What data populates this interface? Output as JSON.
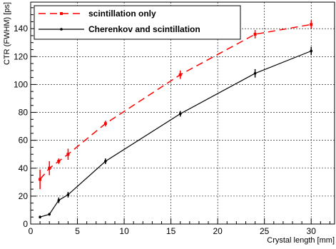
{
  "chart_data": {
    "type": "line",
    "xlabel": "Crystal length [mm]",
    "ylabel": "CTR (FWHM) [ps]",
    "xlim": [
      0,
      32.5
    ],
    "ylim": [
      0,
      159
    ],
    "x_ticks": [
      0,
      5,
      10,
      15,
      20,
      25,
      30
    ],
    "y_ticks": [
      0,
      20,
      40,
      60,
      80,
      100,
      120,
      140
    ],
    "legend_position": "top-left",
    "grid": true,
    "series": [
      {
        "name": "scintillation only",
        "color": "#ff0000",
        "line_style": "dashed",
        "marker": "square",
        "x": [
          1,
          2,
          3,
          4,
          8,
          16,
          24,
          30
        ],
        "y": [
          32,
          40,
          45,
          50,
          72,
          107,
          136,
          143
        ],
        "err": [
          7,
          5,
          2,
          4,
          2,
          3,
          3,
          3
        ]
      },
      {
        "name": "Cherenkov and scintillation",
        "color": "#000000",
        "line_style": "solid",
        "marker": "dot",
        "x": [
          1,
          2,
          3,
          4,
          8,
          16,
          24,
          30
        ],
        "y": [
          5,
          7,
          17,
          21,
          45,
          79,
          108,
          124
        ],
        "err": [
          1,
          1,
          2,
          2,
          2,
          2,
          3,
          3
        ]
      }
    ]
  }
}
